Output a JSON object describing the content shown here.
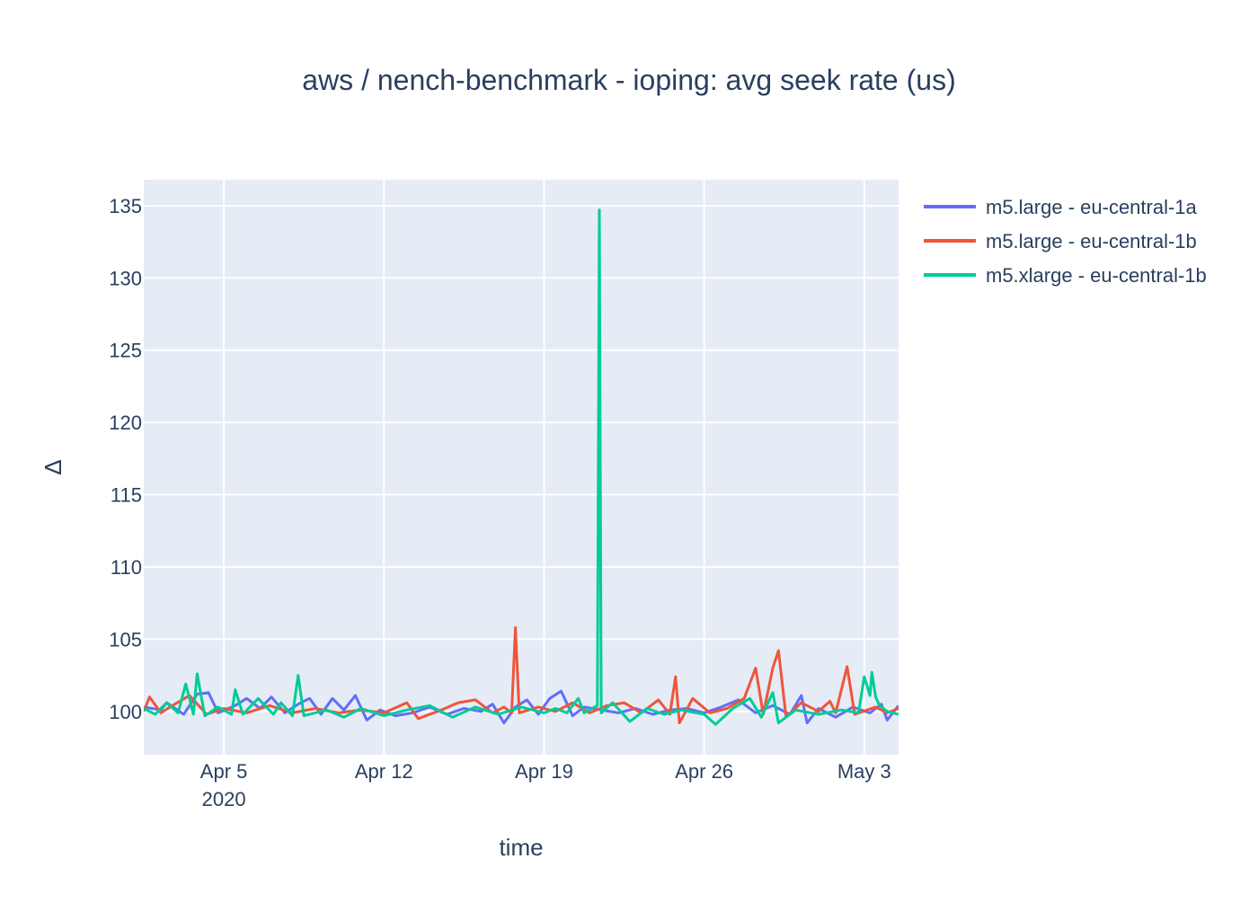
{
  "chart_data": {
    "type": "line",
    "title": "aws / nench-benchmark - ioping: avg seek rate (us)",
    "xlabel": "time",
    "ylabel": "Δ",
    "x_range": [
      "2020-04-01T12:00",
      "2020-05-04T12:00"
    ],
    "ylim": [
      97,
      136.8
    ],
    "x_ticks": [
      {
        "date": "2020-04-05",
        "label": "Apr 5",
        "sublabel": "2020"
      },
      {
        "date": "2020-04-12",
        "label": "Apr 12",
        "sublabel": ""
      },
      {
        "date": "2020-04-19",
        "label": "Apr 19",
        "sublabel": ""
      },
      {
        "date": "2020-04-26",
        "label": "Apr 26",
        "sublabel": ""
      },
      {
        "date": "2020-05-03",
        "label": "May 3",
        "sublabel": ""
      }
    ],
    "y_ticks": [
      100,
      105,
      110,
      115,
      120,
      125,
      130,
      135
    ],
    "grid": true,
    "legend_position": "top-right",
    "background_color": "#E5ECF6",
    "series": [
      {
        "name": "m5.large - eu-central-1a",
        "color": "#636EFA",
        "points": [
          [
            "2020-04-01T12:00",
            100.3
          ],
          [
            "2020-04-02T06:00",
            100.1
          ],
          [
            "2020-04-02T12:00",
            100.6
          ],
          [
            "2020-04-03T06:00",
            99.8
          ],
          [
            "2020-04-03T20:00",
            101.2
          ],
          [
            "2020-04-04T08:00",
            101.3
          ],
          [
            "2020-04-04T18:00",
            99.9
          ],
          [
            "2020-04-05T12:00",
            100.4
          ],
          [
            "2020-04-06T00:00",
            100.9
          ],
          [
            "2020-04-06T14:00",
            100.2
          ],
          [
            "2020-04-07T02:00",
            101.0
          ],
          [
            "2020-04-07T16:00",
            99.9
          ],
          [
            "2020-04-08T06:00",
            100.5
          ],
          [
            "2020-04-08T18:00",
            100.9
          ],
          [
            "2020-04-09T06:00",
            99.8
          ],
          [
            "2020-04-09T18:00",
            100.9
          ],
          [
            "2020-04-10T06:00",
            100.1
          ],
          [
            "2020-04-10T18:00",
            101.1
          ],
          [
            "2020-04-11T06:00",
            99.4
          ],
          [
            "2020-04-11T20:00",
            100.1
          ],
          [
            "2020-04-12T12:00",
            99.7
          ],
          [
            "2020-04-13T06:00",
            99.9
          ],
          [
            "2020-04-14T00:00",
            100.3
          ],
          [
            "2020-04-14T18:00",
            99.8
          ],
          [
            "2020-04-15T12:00",
            100.2
          ],
          [
            "2020-04-16T06:00",
            100.0
          ],
          [
            "2020-04-16T18:00",
            100.5
          ],
          [
            "2020-04-17T06:00",
            99.2
          ],
          [
            "2020-04-17T18:00",
            100.3
          ],
          [
            "2020-04-18T06:00",
            100.8
          ],
          [
            "2020-04-18T18:00",
            99.8
          ],
          [
            "2020-04-19T06:00",
            100.9
          ],
          [
            "2020-04-19T18:00",
            101.4
          ],
          [
            "2020-04-20T06:00",
            99.7
          ],
          [
            "2020-04-20T18:00",
            100.3
          ],
          [
            "2020-04-21T12:00",
            100.1
          ],
          [
            "2020-04-22T06:00",
            99.9
          ],
          [
            "2020-04-23T00:00",
            100.2
          ],
          [
            "2020-04-23T18:00",
            99.8
          ],
          [
            "2020-04-24T12:00",
            100.1
          ],
          [
            "2020-04-25T06:00",
            100.2
          ],
          [
            "2020-04-26T00:00",
            99.9
          ],
          [
            "2020-04-26T18:00",
            100.3
          ],
          [
            "2020-04-27T12:00",
            100.8
          ],
          [
            "2020-04-28T06:00",
            99.9
          ],
          [
            "2020-04-29T00:00",
            100.4
          ],
          [
            "2020-04-29T18:00",
            99.8
          ],
          [
            "2020-04-30T06:00",
            101.1
          ],
          [
            "2020-04-30T12:00",
            99.2
          ],
          [
            "2020-05-01T00:00",
            100.2
          ],
          [
            "2020-05-01T18:00",
            99.6
          ],
          [
            "2020-05-02T12:00",
            100.3
          ],
          [
            "2020-05-03T06:00",
            99.9
          ],
          [
            "2020-05-03T18:00",
            100.5
          ],
          [
            "2020-05-04T00:00",
            99.4
          ],
          [
            "2020-05-04T12:00",
            100.4
          ]
        ]
      },
      {
        "name": "m5.large - eu-central-1b",
        "color": "#EF553B",
        "points": [
          [
            "2020-04-01T12:00",
            100.0
          ],
          [
            "2020-04-01T18:00",
            101.0
          ],
          [
            "2020-04-02T06:00",
            99.9
          ],
          [
            "2020-04-02T18:00",
            100.4
          ],
          [
            "2020-04-03T12:00",
            101.1
          ],
          [
            "2020-04-04T06:00",
            99.8
          ],
          [
            "2020-04-05T00:00",
            100.2
          ],
          [
            "2020-04-06T00:00",
            99.9
          ],
          [
            "2020-04-07T00:00",
            100.4
          ],
          [
            "2020-04-08T00:00",
            99.9
          ],
          [
            "2020-04-09T00:00",
            100.2
          ],
          [
            "2020-04-10T00:00",
            99.9
          ],
          [
            "2020-04-11T00:00",
            100.1
          ],
          [
            "2020-04-12T00:00",
            99.9
          ],
          [
            "2020-04-13T00:00",
            100.6
          ],
          [
            "2020-04-13T12:00",
            99.5
          ],
          [
            "2020-04-14T12:00",
            100.1
          ],
          [
            "2020-04-15T06:00",
            100.6
          ],
          [
            "2020-04-16T00:00",
            100.8
          ],
          [
            "2020-04-16T18:00",
            99.9
          ],
          [
            "2020-04-17T06:00",
            100.3
          ],
          [
            "2020-04-17T14:00",
            99.9
          ],
          [
            "2020-04-17T18:00",
            105.8
          ],
          [
            "2020-04-17T22:00",
            99.9
          ],
          [
            "2020-04-18T18:00",
            100.3
          ],
          [
            "2020-04-19T12:00",
            100.0
          ],
          [
            "2020-04-20T06:00",
            100.6
          ],
          [
            "2020-04-21T00:00",
            99.9
          ],
          [
            "2020-04-21T18:00",
            100.4
          ],
          [
            "2020-04-22T12:00",
            100.6
          ],
          [
            "2020-04-23T06:00",
            99.9
          ],
          [
            "2020-04-24T00:00",
            100.8
          ],
          [
            "2020-04-24T12:00",
            99.8
          ],
          [
            "2020-04-24T18:00",
            102.4
          ],
          [
            "2020-04-24T22:00",
            99.2
          ],
          [
            "2020-04-25T12:00",
            100.9
          ],
          [
            "2020-04-26T06:00",
            99.9
          ],
          [
            "2020-04-27T00:00",
            100.2
          ],
          [
            "2020-04-27T18:00",
            100.9
          ],
          [
            "2020-04-28T06:00",
            103.0
          ],
          [
            "2020-04-28T14:00",
            99.8
          ],
          [
            "2020-04-29T00:00",
            103.0
          ],
          [
            "2020-04-29T06:00",
            104.2
          ],
          [
            "2020-04-29T14:00",
            99.6
          ],
          [
            "2020-04-30T06:00",
            100.6
          ],
          [
            "2020-05-01T00:00",
            100.0
          ],
          [
            "2020-05-01T12:00",
            100.7
          ],
          [
            "2020-05-01T18:00",
            99.9
          ],
          [
            "2020-05-02T06:00",
            103.1
          ],
          [
            "2020-05-02T14:00",
            99.8
          ],
          [
            "2020-05-03T12:00",
            100.3
          ],
          [
            "2020-05-04T00:00",
            99.9
          ],
          [
            "2020-05-04T12:00",
            100.2
          ]
        ]
      },
      {
        "name": "m5.xlarge - eu-central-1b",
        "color": "#00CC96",
        "points": [
          [
            "2020-04-01T12:00",
            100.2
          ],
          [
            "2020-04-02T00:00",
            99.8
          ],
          [
            "2020-04-02T12:00",
            100.6
          ],
          [
            "2020-04-03T00:00",
            99.9
          ],
          [
            "2020-04-03T08:00",
            101.9
          ],
          [
            "2020-04-03T16:00",
            99.8
          ],
          [
            "2020-04-03T20:00",
            102.6
          ],
          [
            "2020-04-04T04:00",
            99.7
          ],
          [
            "2020-04-04T18:00",
            100.3
          ],
          [
            "2020-04-05T08:00",
            99.8
          ],
          [
            "2020-04-05T12:00",
            101.5
          ],
          [
            "2020-04-05T20:00",
            99.8
          ],
          [
            "2020-04-06T12:00",
            100.9
          ],
          [
            "2020-04-07T04:00",
            99.8
          ],
          [
            "2020-04-07T12:00",
            100.6
          ],
          [
            "2020-04-08T00:00",
            99.7
          ],
          [
            "2020-04-08T06:00",
            102.5
          ],
          [
            "2020-04-08T12:00",
            99.7
          ],
          [
            "2020-04-09T12:00",
            100.1
          ],
          [
            "2020-04-10T06:00",
            99.6
          ],
          [
            "2020-04-11T00:00",
            100.2
          ],
          [
            "2020-04-12T00:00",
            99.7
          ],
          [
            "2020-04-13T00:00",
            100.1
          ],
          [
            "2020-04-14T00:00",
            100.4
          ],
          [
            "2020-04-15T00:00",
            99.6
          ],
          [
            "2020-04-16T00:00",
            100.3
          ],
          [
            "2020-04-17T00:00",
            99.8
          ],
          [
            "2020-04-18T00:00",
            100.3
          ],
          [
            "2020-04-19T00:00",
            99.9
          ],
          [
            "2020-04-19T12:00",
            100.2
          ],
          [
            "2020-04-20T00:00",
            99.9
          ],
          [
            "2020-04-20T12:00",
            100.9
          ],
          [
            "2020-04-20T18:00",
            99.9
          ],
          [
            "2020-04-21T08:00",
            100.4
          ],
          [
            "2020-04-21T10:00",
            134.7
          ],
          [
            "2020-04-21T12:00",
            99.9
          ],
          [
            "2020-04-22T00:00",
            100.6
          ],
          [
            "2020-04-22T18:00",
            99.3
          ],
          [
            "2020-04-23T12:00",
            100.2
          ],
          [
            "2020-04-24T06:00",
            99.8
          ],
          [
            "2020-04-25T00:00",
            100.1
          ],
          [
            "2020-04-26T00:00",
            99.8
          ],
          [
            "2020-04-26T12:00",
            99.1
          ],
          [
            "2020-04-27T06:00",
            100.2
          ],
          [
            "2020-04-28T00:00",
            100.9
          ],
          [
            "2020-04-28T12:00",
            99.6
          ],
          [
            "2020-04-29T00:00",
            101.3
          ],
          [
            "2020-04-29T06:00",
            99.2
          ],
          [
            "2020-04-30T00:00",
            100.1
          ],
          [
            "2020-05-01T00:00",
            99.8
          ],
          [
            "2020-05-02T00:00",
            100.1
          ],
          [
            "2020-05-02T18:00",
            99.9
          ],
          [
            "2020-05-03T00:00",
            102.4
          ],
          [
            "2020-05-03T06:00",
            101.1
          ],
          [
            "2020-05-03T08:00",
            102.7
          ],
          [
            "2020-05-03T12:00",
            101.0
          ],
          [
            "2020-05-03T16:00",
            100.4
          ],
          [
            "2020-05-04T00:00",
            100.0
          ],
          [
            "2020-05-04T12:00",
            99.8
          ]
        ]
      }
    ]
  }
}
